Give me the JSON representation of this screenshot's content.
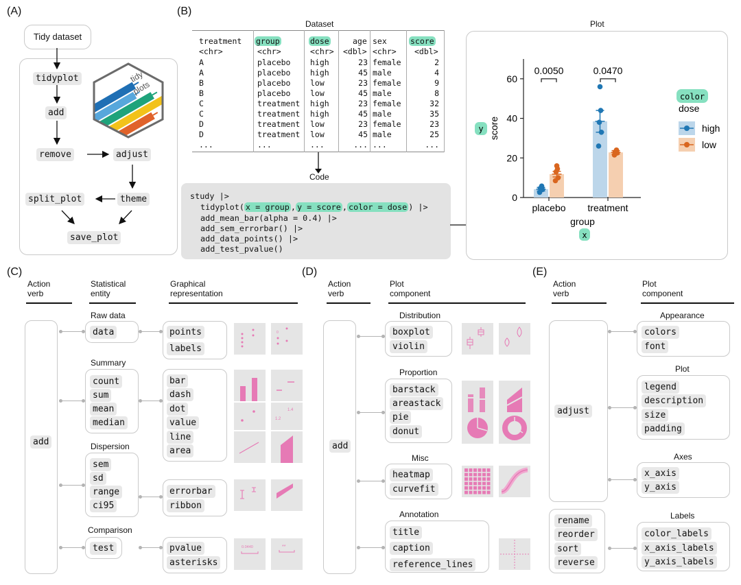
{
  "panels": {
    "a": "(A)",
    "b": "(B)",
    "c": "(C)",
    "d": "(D)",
    "e": "(E)"
  },
  "a": {
    "dataset_label": "Tidy dataset",
    "verbs": {
      "tidyplot": "tidyplot",
      "add": "add",
      "remove": "remove",
      "adjust": "adjust",
      "theme": "theme",
      "split_plot": "split_plot",
      "save_plot": "save_plot"
    },
    "logo_text": [
      "tidy",
      "plots"
    ]
  },
  "b": {
    "dataset_title": "Dataset",
    "table": {
      "headers": [
        "treatment",
        "group",
        "dose",
        "age",
        "sex",
        "score"
      ],
      "types": [
        "<chr>",
        "<chr>",
        "<chr>",
        "<dbl>",
        "<chr>",
        "<dbl>"
      ],
      "rows": [
        [
          "A",
          "placebo",
          "high",
          "23",
          "female",
          "2"
        ],
        [
          "A",
          "placebo",
          "high",
          "45",
          "male",
          "4"
        ],
        [
          "B",
          "placebo",
          "low",
          "23",
          "female",
          "9"
        ],
        [
          "B",
          "placebo",
          "low",
          "45",
          "male",
          "8"
        ],
        [
          "C",
          "treatment",
          "high",
          "23",
          "female",
          "32"
        ],
        [
          "C",
          "treatment",
          "high",
          "45",
          "male",
          "35"
        ],
        [
          "D",
          "treatment",
          "low",
          "23",
          "female",
          "23"
        ],
        [
          "D",
          "treatment",
          "low",
          "45",
          "male",
          "25"
        ],
        [
          "...",
          "...",
          "...",
          "...",
          "...",
          "..."
        ]
      ]
    },
    "code_title": "Code",
    "code": {
      "l1": "study |>",
      "l2a": "tidyplot(",
      "l2b": "x = group",
      "l2c": ",",
      "l2d": "y = score",
      "l2e": ",",
      "l2f": "color = dose",
      "l2g": ") |>",
      "l3": "add_mean_bar(alpha = 0.4) |>",
      "l4": "add_sem_errorbar() |>",
      "l5": "add_data_points() |>",
      "l6": "add_test_pvalue()"
    },
    "plot_title": "Plot"
  },
  "chart_data": {
    "type": "bar",
    "title": "Plot",
    "xlabel": "group",
    "ylabel": "score",
    "x_tag": "x",
    "y_tag": "y",
    "categories": [
      "placebo",
      "treatment"
    ],
    "ylim": [
      0,
      70
    ],
    "yticks": [
      0,
      20,
      40,
      60
    ],
    "series": [
      {
        "name": "high",
        "color": "#1f77b4",
        "fill": "#bcd6ea",
        "values": [
          4.2,
          38.5
        ],
        "sem": [
          0.9,
          5.5
        ],
        "points": [
          [
            2.6,
            4,
            4.6,
            5.8
          ],
          [
            26,
            33,
            38,
            44,
            56
          ]
        ]
      },
      {
        "name": "low",
        "color": "#d9661f",
        "fill": "#f5cfb0",
        "values": [
          11.8,
          22.8
        ],
        "sem": [
          1.4,
          0.9
        ],
        "points": [
          [
            8.5,
            10,
            13,
            14.5,
            16
          ],
          [
            21.5,
            22.5,
            23,
            24
          ]
        ]
      }
    ],
    "pvalues": [
      "0.0050",
      "0.0470"
    ],
    "legend": {
      "tag": "color",
      "title": "dose",
      "entries": [
        "high",
        "low"
      ]
    }
  },
  "c": {
    "headers": {
      "verb": [
        "Action",
        "verb"
      ],
      "entity": [
        "Statistical",
        "entity"
      ],
      "graph": [
        "Graphical",
        "representation"
      ]
    },
    "verb": "add",
    "groups": [
      {
        "title": "Raw data",
        "stats": [
          "data"
        ],
        "reps": [
          "points",
          "labels"
        ]
      },
      {
        "title": "Summary",
        "stats": [
          "count",
          "sum",
          "mean",
          "median"
        ],
        "reps": [
          "bar",
          "dash",
          "dot",
          "value",
          "line",
          "area"
        ]
      },
      {
        "title": "Dispersion",
        "stats": [
          "sem",
          "sd",
          "range",
          "ci95"
        ],
        "reps": [
          "errorbar",
          "ribbon"
        ]
      },
      {
        "title": "Comparison",
        "stats": [
          "test"
        ],
        "reps": [
          "pvalue",
          "asterisks"
        ]
      }
    ],
    "thumb_text": {
      "pvalue": "0.0440",
      "asterisks": "**",
      "value_a": "1.2",
      "value_b": "1.4"
    }
  },
  "d": {
    "headers": {
      "verb": [
        "Action",
        "verb"
      ],
      "comp": [
        "Plot",
        "component"
      ]
    },
    "verb": "add",
    "groups": [
      {
        "title": "Distribution",
        "items": [
          "boxplot",
          "violin"
        ]
      },
      {
        "title": "Proportion",
        "items": [
          "barstack",
          "areastack",
          "pie",
          "donut"
        ]
      },
      {
        "title": "Misc",
        "items": [
          "heatmap",
          "curvefit"
        ]
      },
      {
        "title": "Annotation",
        "items": [
          "title",
          "caption",
          "reference_lines"
        ]
      }
    ]
  },
  "e": {
    "headers": {
      "verb": [
        "Action",
        "verb"
      ],
      "comp": [
        "Plot",
        "component"
      ]
    },
    "verb_adjust": "adjust",
    "verbs_labels": [
      "rename",
      "reorder",
      "sort",
      "reverse"
    ],
    "groups": [
      {
        "title": "Appearance",
        "items": [
          "colors",
          "font"
        ]
      },
      {
        "title": "Plot",
        "items": [
          "legend",
          "description",
          "size",
          "padding"
        ]
      },
      {
        "title": "Axes",
        "items": [
          "x_axis",
          "y_axis"
        ]
      },
      {
        "title": "Labels",
        "items": [
          "color_labels",
          "x_axis_labels",
          "y_axis_labels"
        ]
      }
    ]
  }
}
